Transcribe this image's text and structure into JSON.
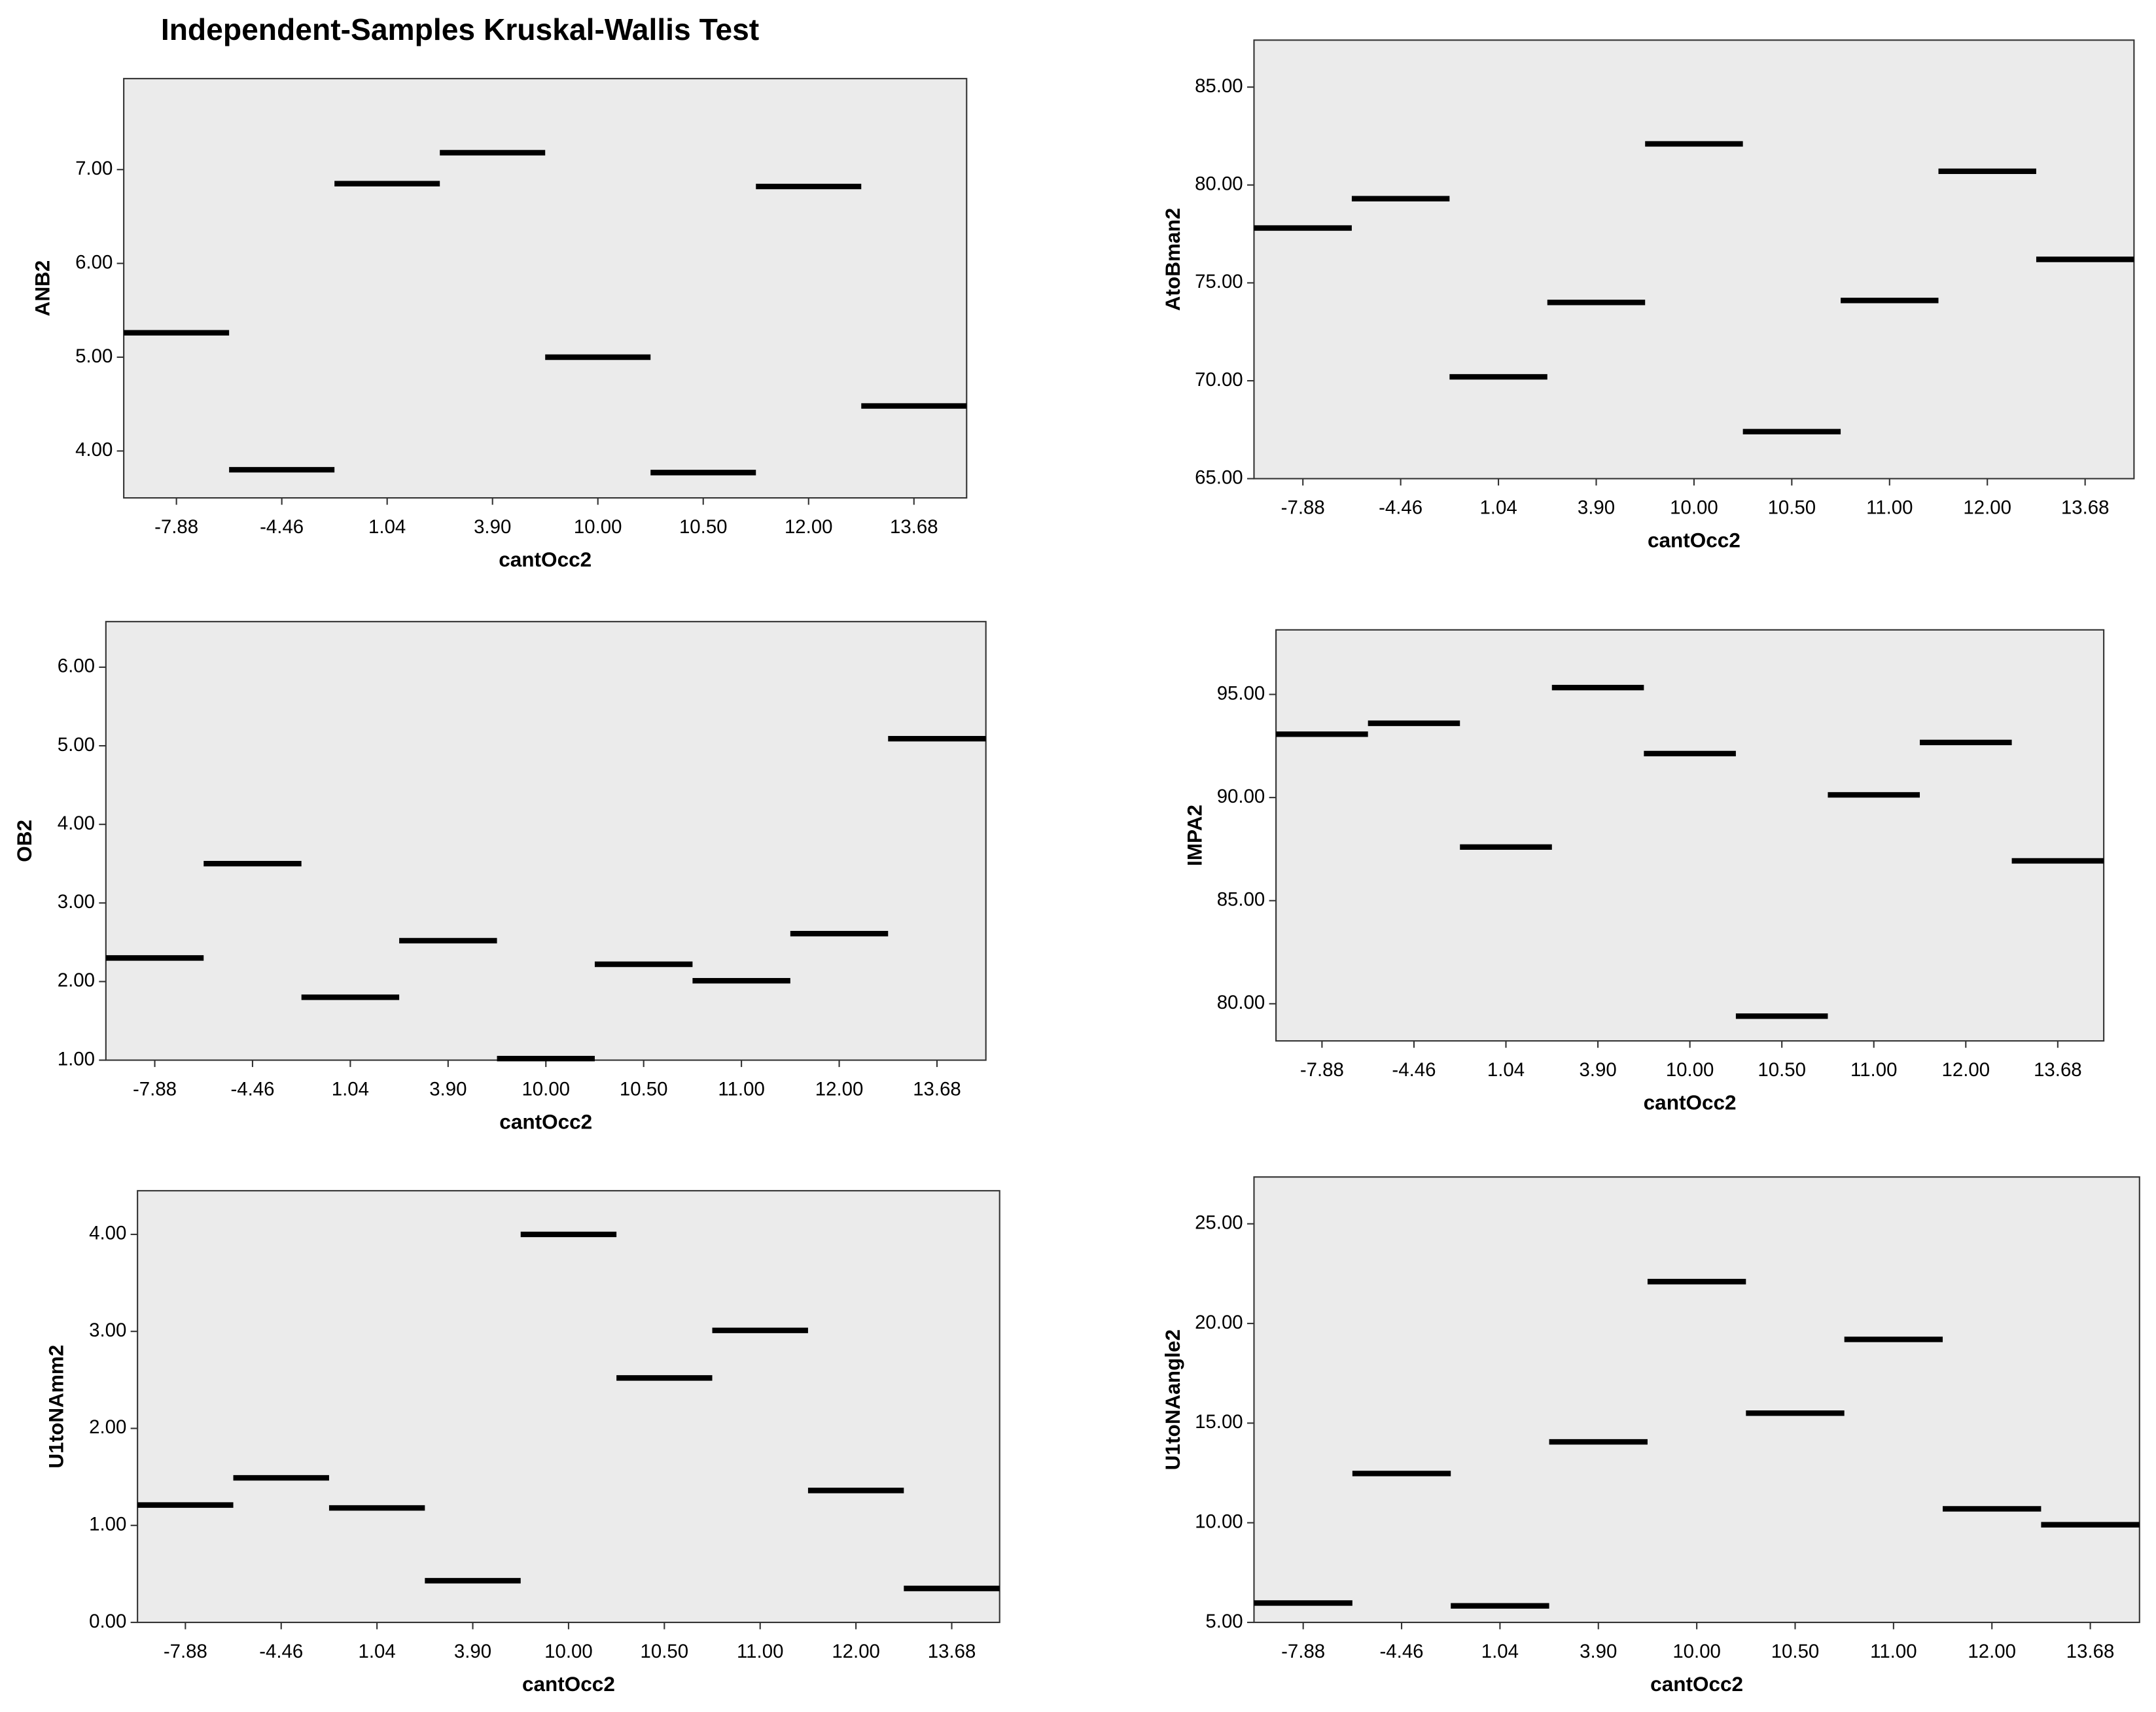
{
  "title": "Independent-Samples Kruskal-Wallis Test",
  "chart_data": [
    {
      "type": "median",
      "y_label": "ANB2",
      "x_label": "cantOcc2",
      "color": "#000000",
      "categories": [
        "-7.88",
        "-4.46",
        "1.04",
        "3.90",
        "10.00",
        "10.50",
        "12.00",
        "13.68"
      ],
      "values": [
        5.26,
        3.8,
        6.85,
        7.18,
        5.0,
        3.77,
        6.82,
        4.48
      ],
      "ylim": [
        3.5,
        7.97
      ],
      "yticks": [
        {
          "value": 4,
          "label": "4.00"
        },
        {
          "value": 5,
          "label": "5.00"
        },
        {
          "value": 6,
          "label": "6.00"
        },
        {
          "value": 7,
          "label": "7.00"
        }
      ]
    },
    {
      "type": "median",
      "y_label": "AtoBman2",
      "x_label": "cantOcc2",
      "color": "#000000",
      "categories": [
        "-7.88",
        "-4.46",
        "1.04",
        "3.90",
        "10.00",
        "10.50",
        "11.00",
        "12.00",
        "13.68"
      ],
      "values": [
        77.8,
        79.3,
        70.2,
        74.0,
        82.1,
        67.4,
        74.1,
        80.7,
        76.2
      ],
      "ylim": [
        65,
        87.4
      ],
      "yticks": [
        {
          "value": 65,
          "label": "65.00"
        },
        {
          "value": 70,
          "label": "70.00"
        },
        {
          "value": 75,
          "label": "75.00"
        },
        {
          "value": 80,
          "label": "80.00"
        },
        {
          "value": 85,
          "label": "85.00"
        }
      ]
    },
    {
      "type": "median",
      "y_label": "OB2",
      "x_label": "cantOcc2",
      "color": "#000000",
      "categories": [
        "-7.88",
        "-4.46",
        "1.04",
        "3.90",
        "10.00",
        "10.50",
        "11.00",
        "12.00",
        "13.68"
      ],
      "values": [
        2.3,
        3.5,
        1.8,
        2.52,
        1.02,
        2.22,
        2.01,
        2.61,
        5.09
      ],
      "ylim": [
        1,
        6.58
      ],
      "yticks": [
        {
          "value": 1,
          "label": "1.00"
        },
        {
          "value": 2,
          "label": "2.00"
        },
        {
          "value": 3,
          "label": "3.00"
        },
        {
          "value": 4,
          "label": "4.00"
        },
        {
          "value": 5,
          "label": "5.00"
        },
        {
          "value": 6,
          "label": "6.00"
        }
      ]
    },
    {
      "type": "median",
      "y_label": "IMPA2",
      "x_label": "cantOcc2",
      "color": "#000000",
      "categories": [
        "-7.88",
        "-4.46",
        "1.04",
        "3.90",
        "10.00",
        "10.50",
        "11.00",
        "12.00",
        "13.68"
      ],
      "values": [
        93.07,
        93.6,
        87.6,
        95.33,
        92.13,
        79.4,
        90.13,
        92.67,
        86.93
      ],
      "ylim": [
        78.2,
        98.13
      ],
      "yticks": [
        {
          "value": 80,
          "label": "80.00"
        },
        {
          "value": 85,
          "label": "85.00"
        },
        {
          "value": 90,
          "label": "90.00"
        },
        {
          "value": 95,
          "label": "95.00"
        }
      ]
    },
    {
      "type": "median",
      "y_label": "U1toNAmm2",
      "x_label": "cantOcc2",
      "color": "#000000",
      "categories": [
        "-7.88",
        "-4.46",
        "1.04",
        "3.90",
        "10.00",
        "10.50",
        "11.00",
        "12.00",
        "13.68"
      ],
      "values": [
        1.21,
        1.49,
        1.18,
        0.43,
        4.0,
        2.52,
        3.01,
        1.36,
        0.35
      ],
      "ylim": [
        0,
        4.45
      ],
      "yticks": [
        {
          "value": 0,
          "label": "0.00"
        },
        {
          "value": 1,
          "label": "1.00"
        },
        {
          "value": 2,
          "label": "2.00"
        },
        {
          "value": 3,
          "label": "3.00"
        },
        {
          "value": 4,
          "label": "4.00"
        }
      ]
    },
    {
      "type": "median",
      "y_label": "U1toNAangle2",
      "x_label": "cantOcc2",
      "color": "#000000",
      "categories": [
        "-7.88",
        "-4.46",
        "1.04",
        "3.90",
        "10.00",
        "10.50",
        "11.00",
        "12.00",
        "13.68"
      ],
      "values": [
        5.97,
        12.47,
        5.83,
        14.06,
        22.1,
        15.5,
        19.2,
        10.7,
        9.9
      ],
      "ylim": [
        5,
        27.35
      ],
      "yticks": [
        {
          "value": 5,
          "label": "5.00"
        },
        {
          "value": 10,
          "label": "10.00"
        },
        {
          "value": 15,
          "label": "15.00"
        },
        {
          "value": 20,
          "label": "20.00"
        },
        {
          "value": 25,
          "label": "25.00"
        }
      ]
    }
  ]
}
